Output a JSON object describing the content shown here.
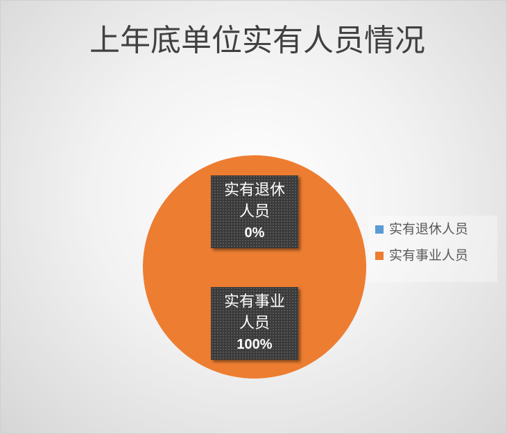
{
  "chart_data": {
    "type": "pie",
    "title": "上年底单位实有人员情况",
    "categories": [
      "实有退休人员",
      "实有事业人员"
    ],
    "values": [
      0,
      100
    ],
    "value_labels": [
      "0%",
      "100%"
    ],
    "colors": [
      "#5b9bd5",
      "#ed7d31"
    ],
    "legend": "right"
  }
}
